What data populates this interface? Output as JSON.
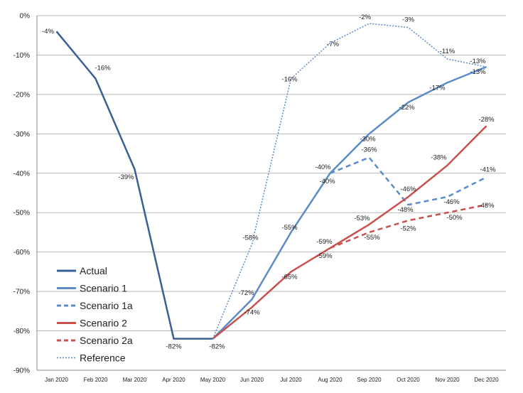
{
  "chart_data": {
    "type": "line",
    "title": "",
    "xlabel": "",
    "ylabel": "",
    "ylim": [
      -90,
      0
    ],
    "y_ticks": [
      "0%",
      "-10%",
      "-20%",
      "-30%",
      "-40%",
      "-50%",
      "-60%",
      "-70%",
      "-80%",
      "-90%"
    ],
    "grid": true,
    "legend_position": "bottom-left",
    "categories": [
      "Jan 2020",
      "Feb 2020",
      "Mar 2020",
      "Apr 2020",
      "May 2020",
      "Jun 2020",
      "Jul 2020",
      "Aug 2020",
      "Sep 2020",
      "Oct 2020",
      "Nov 2020",
      "Dec 2020"
    ],
    "series": [
      {
        "name": "Actual",
        "color": "#3a5f95",
        "dash": "solid",
        "width": 2.5,
        "values": [
          -4,
          -16,
          -39,
          -82,
          -82,
          null,
          null,
          null,
          null,
          null,
          null,
          null
        ],
        "labels": [
          "-4%",
          "-16%",
          "-39%",
          "-82%",
          "-82%",
          "",
          "",
          "",
          "",
          "",
          "",
          ""
        ]
      },
      {
        "name": "Scenario 1",
        "color": "#5b8cc7",
        "dash": "solid",
        "width": 2.5,
        "values": [
          null,
          null,
          null,
          null,
          -82,
          -72,
          -55,
          -40,
          -30,
          -22,
          -17,
          -13
        ],
        "labels": [
          "",
          "",
          "",
          "",
          "",
          "-72%",
          "-55%",
          "-40%",
          "-30%",
          "-22%",
          "-17%",
          "-13%"
        ]
      },
      {
        "name": "Scenario 1a",
        "color": "#5b8cc7",
        "dash": "dashed",
        "width": 2.5,
        "values": [
          null,
          null,
          null,
          null,
          null,
          null,
          null,
          -40,
          -36,
          -48,
          -46,
          -41
        ],
        "labels": [
          "",
          "",
          "",
          "",
          "",
          "",
          "",
          "-40%",
          "-36%",
          "-48%",
          "-46%",
          "-41%"
        ]
      },
      {
        "name": "Scenario 2",
        "color": "#c8504d",
        "dash": "solid",
        "width": 2.5,
        "values": [
          null,
          null,
          null,
          null,
          -82,
          -74,
          -65,
          -59,
          -53,
          -46,
          -38,
          -28
        ],
        "labels": [
          "",
          "",
          "",
          "",
          "",
          "-74%",
          "-65%",
          "-59%",
          "-53%",
          "-46%",
          "-38%",
          "-28%"
        ]
      },
      {
        "name": "Scenario 2a",
        "color": "#c8504d",
        "dash": "dashed",
        "width": 2.5,
        "values": [
          null,
          null,
          null,
          null,
          null,
          null,
          null,
          -59,
          -55,
          -52,
          -50,
          -48
        ],
        "labels": [
          "",
          "",
          "",
          "",
          "",
          "",
          "",
          "-59%",
          "-55%",
          "-52%",
          "-50%",
          "-48%"
        ]
      },
      {
        "name": "Reference",
        "color": "#5b8cc7",
        "dash": "dotted",
        "width": 1.5,
        "values": [
          null,
          null,
          null,
          null,
          -82,
          -58,
          -16,
          -7,
          -2,
          -3,
          -11,
          -13
        ],
        "labels": [
          "",
          "",
          "",
          "",
          "",
          "-58%",
          "-16%",
          "-7%",
          "-2%",
          "-3%",
          "-11%",
          "-13%"
        ]
      }
    ]
  }
}
